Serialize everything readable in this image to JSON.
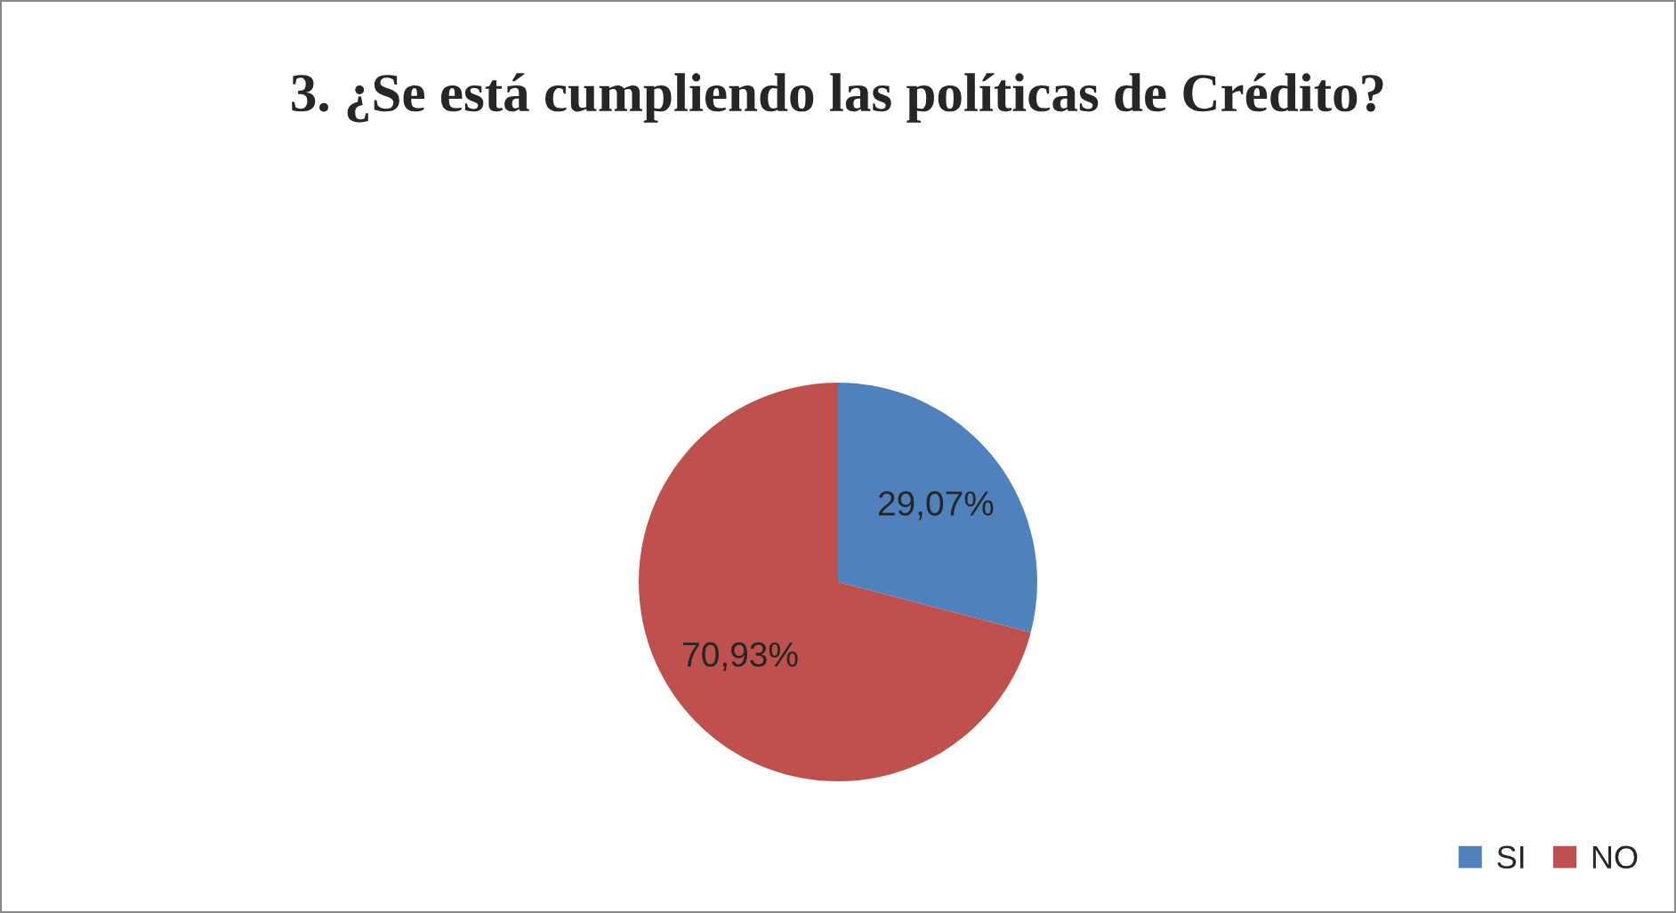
{
  "chart_data": {
    "type": "pie",
    "title": "3. ¿Se está cumpliendo las políticas de Crédito?",
    "categories": [
      "SI",
      "NO"
    ],
    "values": [
      29.07,
      70.93
    ],
    "colors": [
      "#4f81bd",
      "#c0504d"
    ],
    "value_labels": [
      "29,07%",
      "70,93%"
    ],
    "legend": "bottom right"
  }
}
